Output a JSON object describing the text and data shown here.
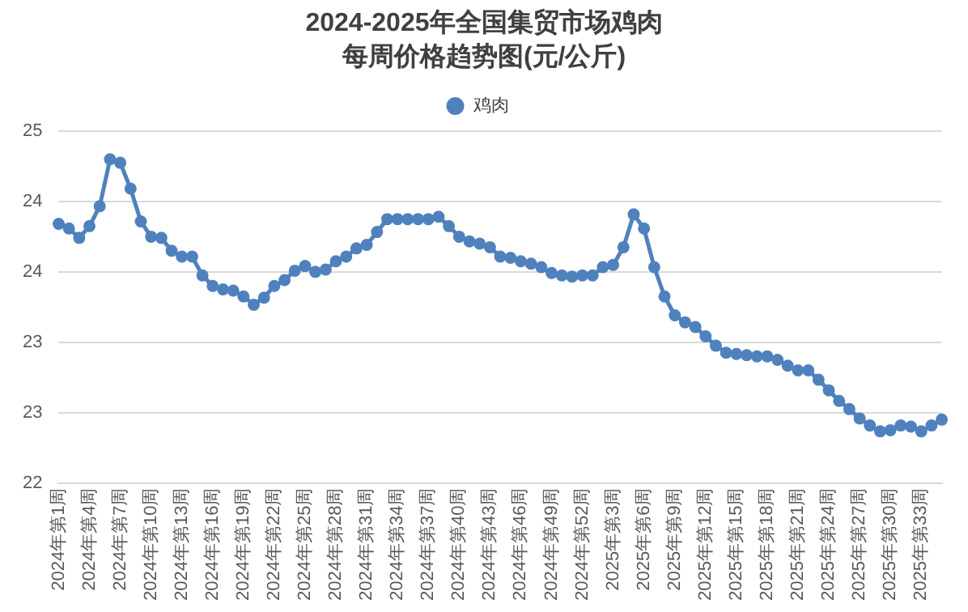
{
  "chart_data": {
    "type": "line",
    "title": "2024-2025年全国集贸市场鸡肉每周价格趋势图(元/公斤)",
    "categories": [
      "2024年第1周",
      null,
      null,
      "2024年第4周",
      null,
      null,
      "2024年第7周",
      null,
      null,
      "2024年第10周",
      null,
      null,
      "2024年第13周",
      null,
      null,
      "2024年第16周",
      null,
      null,
      "2024年第19周",
      null,
      null,
      "2024年第22周",
      null,
      null,
      "2024年第25周",
      null,
      null,
      "2024年第28周",
      null,
      null,
      "2024年第31周",
      null,
      null,
      "2024年第34周",
      null,
      null,
      "2024年第37周",
      null,
      null,
      "2024年第40周",
      null,
      null,
      "2024年第43周",
      null,
      null,
      "2024年第46周",
      null,
      null,
      "2024年第49周",
      null,
      null,
      "2024年第52周",
      null,
      null,
      "2025年第3周",
      null,
      null,
      "2025年第6周",
      null,
      null,
      "2025年第9周",
      null,
      null,
      "2025年第12周",
      null,
      null,
      "2025年第15周",
      null,
      null,
      "2025年第18周",
      null,
      null,
      "2025年第21周",
      null,
      null,
      "2025年第24周",
      null,
      null,
      "2025年第27周",
      null,
      null,
      "2025年第30周",
      null,
      null,
      "2025年第33周",
      null,
      null
    ],
    "series": [
      {
        "name": "鸡肉",
        "color": "#4f81bd",
        "values": [
          24.21,
          24.17,
          24.09,
          24.19,
          24.36,
          24.76,
          24.73,
          24.51,
          24.23,
          24.1,
          24.09,
          23.98,
          23.93,
          23.93,
          23.77,
          23.68,
          23.65,
          23.64,
          23.59,
          23.52,
          23.58,
          23.68,
          23.73,
          23.81,
          23.85,
          23.8,
          23.82,
          23.89,
          23.93,
          24.0,
          24.03,
          24.14,
          24.25,
          24.25,
          24.25,
          24.25,
          24.25,
          24.27,
          24.19,
          24.1,
          24.06,
          24.04,
          24.01,
          23.93,
          23.92,
          23.89,
          23.87,
          23.84,
          23.79,
          23.77,
          23.76,
          23.77,
          23.77,
          23.84,
          23.86,
          24.01,
          24.29,
          24.17,
          23.84,
          23.59,
          23.43,
          23.37,
          23.33,
          23.25,
          23.17,
          23.11,
          23.1,
          23.09,
          23.08,
          23.08,
          23.05,
          23.0,
          22.96,
          22.96,
          22.88,
          22.79,
          22.7,
          22.63,
          22.55,
          22.49,
          22.44,
          22.45,
          22.49,
          22.48,
          22.44,
          22.49,
          22.54
        ]
      }
    ],
    "ylim": [
      22,
      25
    ],
    "yticks": [
      22,
      {
        "value": 22.6,
        "label": "23"
      },
      {
        "value": 23.2,
        "label": "23"
      },
      {
        "value": 23.8,
        "label": "24"
      },
      {
        "value": 24.4,
        "label": "24"
      },
      25
    ],
    "grid": "y",
    "legend": "top",
    "marker": "circle",
    "line_style": "solid"
  }
}
